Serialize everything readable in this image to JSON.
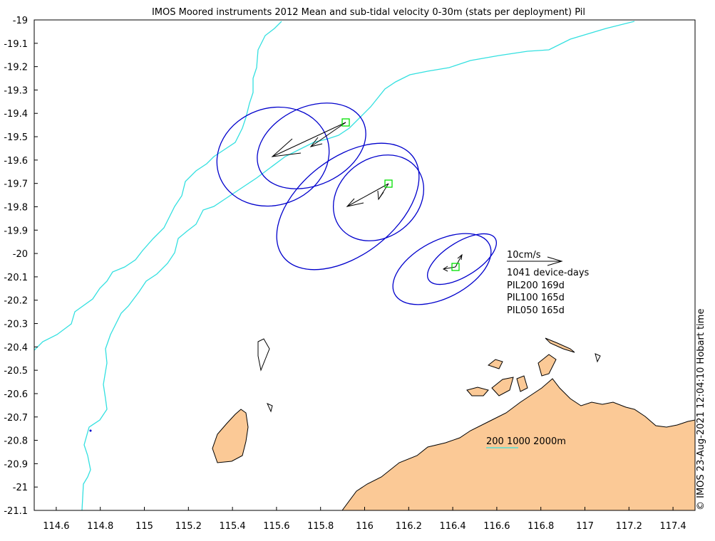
{
  "title": "IMOS Moored instruments 2012 Mean and sub-tidal velocity 0-30m (stats per deployment) Pil",
  "credit": "© IMOS 23-Aug-2021 12:04:10 Hobart time",
  "colors": {
    "land": "#fbc996",
    "coast": "#000000",
    "bathymetry": "#33e0e0",
    "ellipse": "#0000cc",
    "station": "#00e000",
    "arrow": "#000000"
  },
  "axes": {
    "xlim": [
      114.5,
      117.5
    ],
    "ylim": [
      -21.1,
      -19.0
    ],
    "xticks": [
      "114.6",
      "114.8",
      "115",
      "115.2",
      "115.4",
      "115.6",
      "115.8",
      "116",
      "116.2",
      "116.4",
      "116.6",
      "116.8",
      "117",
      "117.2",
      "117.4"
    ],
    "yticks": [
      "-19",
      "-19.1",
      "-19.2",
      "-19.3",
      "-19.4",
      "-19.5",
      "-19.6",
      "-19.7",
      "-19.8",
      "-19.9",
      "-20",
      "-20.1",
      "-20.2",
      "-20.3",
      "-20.4",
      "-20.5",
      "-20.6",
      "-20.7",
      "-20.8",
      "-20.9",
      "-21",
      "-21.1"
    ]
  },
  "legend": {
    "scale_label": "10cm/s",
    "device_days": "1041 device-days",
    "deployments": [
      "PIL200 169d",
      "PIL100 165d",
      "PIL050 165d"
    ],
    "bathy_label": "200 1000 2000m"
  },
  "chart_data": {
    "type": "map",
    "stations": [
      {
        "name": "PIL200",
        "lon": 115.91,
        "lat": -19.435
      },
      {
        "name": "PIL100",
        "lon": 116.11,
        "lat": -19.695
      },
      {
        "name": "PIL050",
        "lon": 116.42,
        "lat": -20.055
      }
    ]
  }
}
